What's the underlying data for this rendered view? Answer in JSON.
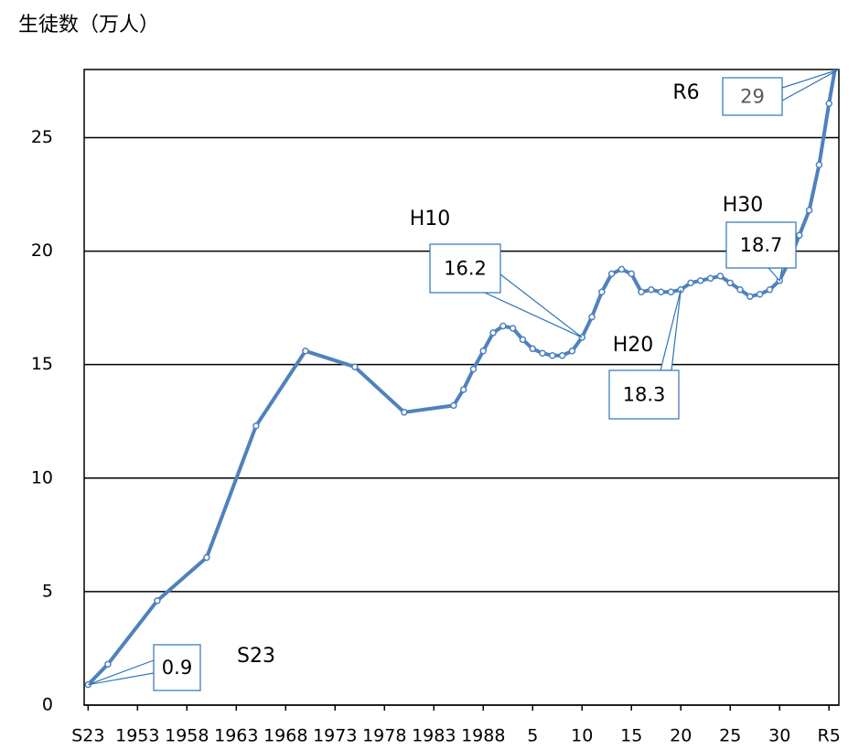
{
  "chart_data": {
    "type": "line",
    "title": "生徒数（万人）",
    "x": [
      1948,
      1950,
      1955,
      1960,
      1965,
      1970,
      1975,
      1980,
      1985,
      1986,
      1987,
      1988,
      1989,
      1990,
      1991,
      1992,
      1993,
      1994,
      1995,
      1996,
      1997,
      1998,
      1999,
      2000,
      2001,
      2002,
      2003,
      2004,
      2005,
      2006,
      2007,
      2008,
      2009,
      2010,
      2011,
      2012,
      2013,
      2014,
      2015,
      2016,
      2017,
      2018,
      2019,
      2020,
      2021,
      2022,
      2023,
      2024
    ],
    "series": [
      {
        "name": null,
        "color": "#4f81bd",
        "values": [
          0.9,
          1.8,
          4.6,
          6.5,
          12.3,
          15.6,
          14.9,
          12.9,
          13.2,
          13.9,
          14.8,
          15.6,
          16.4,
          16.7,
          16.6,
          16.1,
          15.7,
          15.5,
          15.4,
          15.4,
          15.6,
          16.2,
          17.1,
          18.2,
          19.0,
          19.2,
          19.0,
          18.2,
          18.3,
          18.2,
          18.2,
          18.3,
          18.6,
          18.7,
          18.8,
          18.9,
          18.6,
          18.3,
          18.0,
          18.1,
          18.3,
          18.7,
          19.6,
          20.7,
          21.8,
          23.8,
          26.5,
          29
        ],
        "value_labels": [
          "0.9",
          null,
          null,
          null,
          null,
          null,
          null,
          null,
          null,
          null,
          null,
          null,
          null,
          null,
          null,
          null,
          null,
          null,
          null,
          null,
          null,
          "16.2",
          null,
          null,
          null,
          null,
          null,
          null,
          null,
          null,
          null,
          "18.3",
          null,
          null,
          null,
          null,
          null,
          null,
          null,
          null,
          null,
          "18.7",
          null,
          null,
          null,
          null,
          null,
          "29"
        ]
      }
    ],
    "annotations": [
      "S23",
      "H10",
      "H20",
      "H30",
      "R6"
    ],
    "xlim": [
      1947.6,
      2024
    ],
    "xticks": [
      {
        "value": 1948,
        "label": "S23"
      },
      1953,
      1958,
      1963,
      1968,
      1973,
      1978,
      1983,
      1988,
      {
        "value": 1993,
        "label": "5"
      },
      {
        "value": 1998,
        "label": "10"
      },
      {
        "value": 2003,
        "label": "15"
      },
      {
        "value": 2008,
        "label": "20"
      },
      {
        "value": 2013,
        "label": "25"
      },
      {
        "value": 2018,
        "label": "30"
      },
      {
        "value": 2023,
        "label": "R5"
      }
    ],
    "ylim": [
      0,
      28
    ],
    "yticks": [
      0,
      5,
      10,
      15,
      20,
      25
    ],
    "grid": true
  }
}
